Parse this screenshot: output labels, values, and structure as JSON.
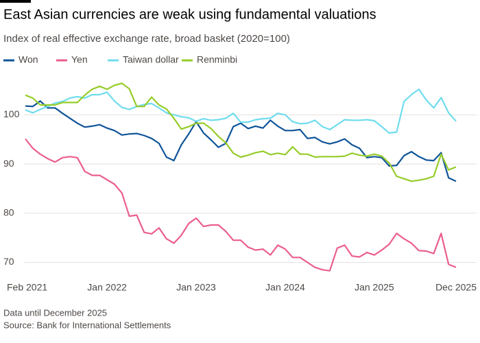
{
  "chart_data": {
    "type": "line",
    "title": "East Asian currencies are weak using fundamental valuations",
    "subtitle": "Index of real effective exchange rate, broad basket (2020=100)",
    "notes": [
      "Data until December 2025",
      "Source: Bank for International Settlements"
    ],
    "categories": [
      "Feb 2021",
      null,
      null,
      null,
      null,
      null,
      null,
      null,
      null,
      null,
      null,
      "Jan 2022",
      null,
      null,
      null,
      null,
      null,
      null,
      null,
      null,
      null,
      null,
      null,
      "Jan 2023",
      null,
      null,
      null,
      null,
      null,
      null,
      null,
      null,
      null,
      null,
      null,
      "Jan 2024",
      null,
      null,
      null,
      null,
      null,
      null,
      null,
      null,
      null,
      null,
      null,
      "Jan 2025",
      null,
      null,
      null,
      null,
      null,
      null,
      null,
      null,
      null,
      null,
      "Dec 2025"
    ],
    "ylim": [
      67,
      108
    ],
    "yticks": [
      70,
      80,
      90,
      100
    ],
    "grid": true,
    "series": [
      {
        "name": "Won",
        "color": "#0f5499",
        "values": [
          101.8,
          101.7,
          102.8,
          101.4,
          101.4,
          100.3,
          99.3,
          98.3,
          97.5,
          97.7,
          98.0,
          97.3,
          96.8,
          95.9,
          96.1,
          96.2,
          95.8,
          95.2,
          94.2,
          91.4,
          90.7,
          93.9,
          96.1,
          98.6,
          96.3,
          94.9,
          93.4,
          94.2,
          97.6,
          98.3,
          97.2,
          97.7,
          97.3,
          98.9,
          97.7,
          96.8,
          96.8,
          97.0,
          95.2,
          95.4,
          94.5,
          94.1,
          94.5,
          95.1,
          93.9,
          93.2,
          91.3,
          91.5,
          91.3,
          89.6,
          89.7,
          91.7,
          92.5,
          91.5,
          90.8,
          90.7,
          92.3,
          87.2,
          86.5
        ]
      },
      {
        "name": "Yen",
        "color": "#eb5e8d",
        "values": [
          95.1,
          93.2,
          92.0,
          91.1,
          90.4,
          91.3,
          91.5,
          91.3,
          88.5,
          87.7,
          87.7,
          86.8,
          85.9,
          84.1,
          79.4,
          79.6,
          76.1,
          75.8,
          77.0,
          74.8,
          73.9,
          75.5,
          77.9,
          79.0,
          77.3,
          77.6,
          77.6,
          76.3,
          74.5,
          74.5,
          73.1,
          72.5,
          72.7,
          71.5,
          73.5,
          72.7,
          71.0,
          71.0,
          70.0,
          69.0,
          68.5,
          68.3,
          72.9,
          73.5,
          71.3,
          71.1,
          72.0,
          71.5,
          72.5,
          73.7,
          75.9,
          74.8,
          73.9,
          72.4,
          72.3,
          71.8,
          75.9,
          69.6,
          69.0
        ]
      },
      {
        "name": "Taiwan dollar",
        "color": "#6fdcee",
        "values": [
          101.0,
          100.4,
          101.1,
          101.7,
          102.4,
          102.7,
          103.4,
          103.7,
          103.4,
          104.1,
          104.1,
          104.6,
          102.8,
          101.5,
          101.1,
          101.7,
          102.1,
          102.3,
          101.4,
          100.4,
          100.0,
          99.6,
          99.4,
          98.7,
          99.2,
          98.9,
          99.0,
          99.3,
          100.3,
          98.5,
          98.5,
          99.0,
          99.2,
          99.3,
          100.3,
          100.0,
          98.6,
          98.2,
          98.3,
          98.9,
          97.6,
          97.0,
          98.0,
          99.0,
          98.9,
          98.9,
          99.0,
          98.8,
          97.6,
          96.3,
          96.5,
          102.7,
          104.1,
          105.2,
          103.0,
          101.4,
          103.5,
          100.4,
          98.7
        ]
      },
      {
        "name": "Renminbi",
        "color": "#96cc28",
        "values": [
          104.0,
          103.4,
          102.0,
          102.0,
          102.0,
          102.5,
          102.5,
          102.5,
          104.0,
          105.2,
          105.8,
          105.2,
          106.0,
          106.4,
          105.3,
          101.7,
          101.7,
          103.6,
          102.0,
          101.2,
          99.3,
          97.1,
          97.6,
          98.3,
          98.3,
          97.2,
          95.6,
          94.3,
          92.2,
          91.4,
          91.8,
          92.3,
          92.6,
          91.9,
          92.2,
          91.9,
          93.5,
          92.0,
          92.0,
          91.4,
          91.5,
          91.5,
          91.5,
          91.6,
          92.2,
          91.8,
          91.6,
          92.0,
          91.6,
          90.2,
          87.5,
          87.0,
          86.5,
          86.7,
          87.0,
          87.5,
          92.0,
          88.8,
          89.4
        ]
      }
    ]
  }
}
